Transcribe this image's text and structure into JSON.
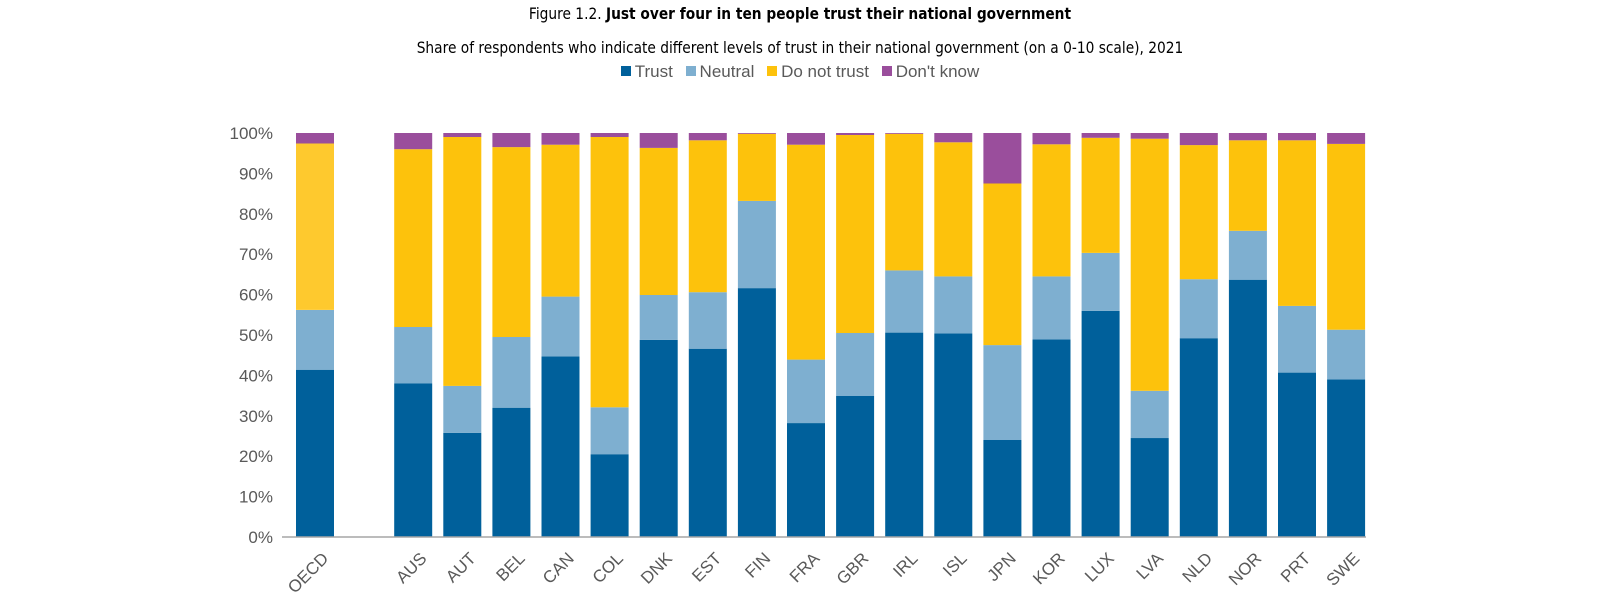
{
  "figure": {
    "label": "Figure 1.2.",
    "title": "Just over four in ten people trust their national government",
    "subtitle": "Share of respondents who indicate different levels of trust in their national government (on a 0-10 scale), 2021"
  },
  "chart_data": {
    "type": "bar",
    "stacked": true,
    "categories": [
      "OECD",
      "",
      "AUS",
      "AUT",
      "BEL",
      "CAN",
      "COL",
      "DNK",
      "EST",
      "FIN",
      "FRA",
      "GBR",
      "IRL",
      "ISL",
      "JPN",
      "KOR",
      "LUX",
      "LVA",
      "NLD",
      "NOR",
      "PRT",
      "SWE"
    ],
    "series": [
      {
        "name": "Trust",
        "color": "#00609b",
        "values": [
          41.4,
          null,
          38.0,
          25.8,
          32.0,
          44.7,
          20.5,
          48.8,
          46.6,
          61.6,
          28.2,
          34.9,
          50.6,
          50.4,
          24.0,
          48.9,
          56.0,
          24.5,
          49.2,
          63.7,
          40.7,
          39.0
        ]
      },
      {
        "name": "Neutral",
        "color": "#7eafd0",
        "values": [
          14.8,
          null,
          14.0,
          11.6,
          17.5,
          14.8,
          11.6,
          11.1,
          14.0,
          21.6,
          15.7,
          15.6,
          15.4,
          14.1,
          23.5,
          15.6,
          14.3,
          11.7,
          14.6,
          12.1,
          16.5,
          12.3
        ]
      },
      {
        "name": "Do not trust",
        "color": "#fdc20c",
        "values": [
          41.2,
          null,
          44.0,
          61.6,
          47.0,
          37.6,
          66.9,
          36.4,
          37.6,
          16.6,
          53.2,
          49.0,
          33.8,
          33.2,
          40.0,
          32.7,
          28.5,
          62.4,
          33.2,
          22.4,
          41.0,
          46.0
        ]
      },
      {
        "name": "Don't know",
        "color": "#9a4e9c",
        "values": [
          2.6,
          null,
          4.0,
          1.0,
          3.5,
          2.9,
          1.0,
          3.7,
          1.8,
          0.2,
          2.9,
          0.5,
          0.2,
          2.3,
          12.5,
          2.8,
          1.2,
          1.4,
          3.0,
          1.8,
          1.8,
          2.7
        ]
      }
    ],
    "oecd_colors": [
      "#00609b",
      "#7eafd0",
      "#fec92e",
      "#9a4e9c"
    ],
    "ylim": [
      0,
      100
    ],
    "yticks": [
      "0%",
      "10%",
      "20%",
      "30%",
      "40%",
      "50%",
      "60%",
      "70%",
      "80%",
      "90%",
      "100%"
    ],
    "xlabel": "",
    "ylabel": "",
    "legend_position": "top",
    "grid": false
  }
}
